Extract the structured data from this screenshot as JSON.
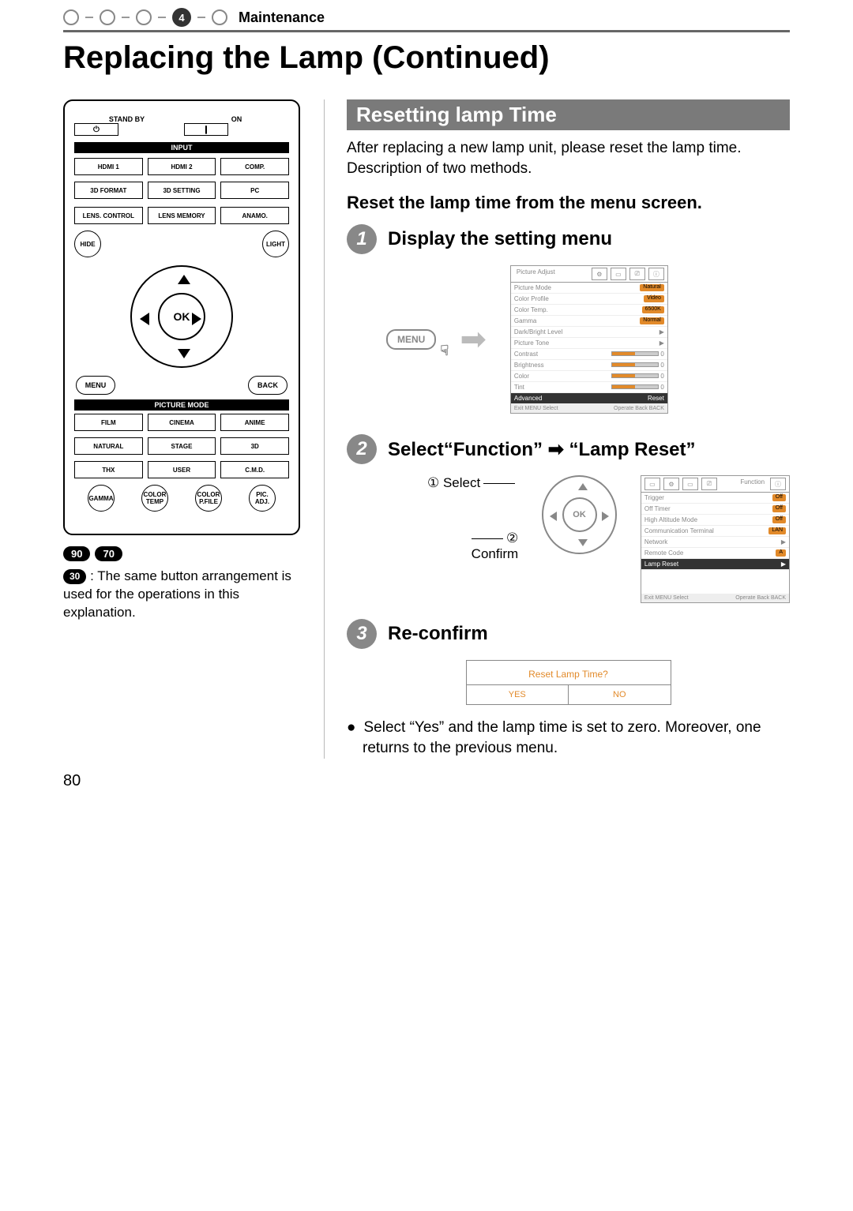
{
  "breadcrumb": {
    "step_number": "4",
    "title": "Maintenance"
  },
  "page_title": "Replacing the Lamp (Continued)",
  "page_number": "80",
  "remote": {
    "standby_label": "STAND BY",
    "on_label": "ON",
    "input_label": "INPUT",
    "row_input": [
      "HDMI 1",
      "HDMI 2",
      "COMP."
    ],
    "row_input2": [
      "3D FORMAT",
      "3D SETTING",
      "PC"
    ],
    "row_lens": [
      "LENS. CONTROL",
      "LENS MEMORY",
      "ANAMO."
    ],
    "hide": "HIDE",
    "light": "LIGHT",
    "ok": "OK",
    "menu": "MENU",
    "back": "BACK",
    "pm_label": "PICTURE MODE",
    "row_pm1": [
      "FILM",
      "CINEMA",
      "ANIME"
    ],
    "row_pm2": [
      "NATURAL",
      "STAGE",
      "3D"
    ],
    "row_pm3": [
      "THX",
      "USER",
      "C.M.D."
    ],
    "row_circ": [
      "GAMMA",
      "COLOR TEMP",
      "COLOR P.FILE",
      "PIC. ADJ."
    ]
  },
  "left_badges": [
    "90",
    "70"
  ],
  "left_note_badge": "30",
  "left_note": ": The same button arrangement is used for the operations in this explanation.",
  "section_title": "Resetting lamp Time",
  "intro_para": "After replacing a new lamp unit, please reset the lamp time. Description of two methods.",
  "subhead_menu": "Reset the lamp time from the menu screen.",
  "step1": {
    "num": "1",
    "title": "Display the setting menu",
    "menu_btn": "MENU"
  },
  "osd1": {
    "tab_label": "Picture Adjust",
    "rows": [
      {
        "k": "Picture Mode",
        "v": "Natural",
        "pill": true
      },
      {
        "k": "Color Profile",
        "v": "Video",
        "pill": true
      },
      {
        "k": "Color Temp.",
        "v": "6500K",
        "pill": true
      },
      {
        "k": "Gamma",
        "v": "Normal",
        "pill": true
      },
      {
        "k": "Dark/Bright Level",
        "v": "▶"
      },
      {
        "k": "Picture Tone",
        "v": "▶"
      },
      {
        "k": "Contrast",
        "v": "0",
        "slider": true
      },
      {
        "k": "Brightness",
        "v": "0",
        "slider": true
      },
      {
        "k": "Color",
        "v": "0",
        "slider": true
      },
      {
        "k": "Tint",
        "v": "0",
        "slider": true
      }
    ],
    "advanced": "Advanced",
    "reset": "Reset",
    "foot_exit": "Exit",
    "foot_menu": "MENU",
    "foot_select": "Select",
    "foot_operate": "Operate",
    "foot_back": "Back",
    "foot_back2": "BACK"
  },
  "step2": {
    "num": "2",
    "title": "Select“Function” ➡ “Lamp Reset”",
    "select_label": "Select",
    "confirm_label": "Confirm",
    "marker1": "①",
    "marker2": "②",
    "ok": "OK"
  },
  "osd2": {
    "tab_label": "Function",
    "rows": [
      {
        "k": "Trigger",
        "v": "Off",
        "pill": true
      },
      {
        "k": "Off Timer",
        "v": "Off",
        "pill": true
      },
      {
        "k": "High Altitude Mode",
        "v": "Off",
        "pill": true
      },
      {
        "k": "Communication Terminal",
        "v": "LAN",
        "pill": true
      },
      {
        "k": "Network",
        "v": "▶"
      },
      {
        "k": "Remote Code",
        "v": "A",
        "pill": true
      },
      {
        "k": "Lamp Reset",
        "v": "▶",
        "sel": true
      }
    ],
    "foot_exit": "Exit",
    "foot_menu": "MENU",
    "foot_select": "Select",
    "foot_operate": "Operate",
    "foot_back": "Back",
    "foot_back2": "BACK"
  },
  "step3": {
    "num": "3",
    "title": "Re-confirm",
    "question": "Reset Lamp Time?",
    "yes": "YES",
    "no": "NO",
    "bullet": "Select “Yes” and the lamp time is set to zero. Moreover, one returns to the previous menu."
  },
  "colors": {
    "section_bg": "#7a7a7a",
    "step_bg": "#888888",
    "accent": "#e28a2a"
  }
}
